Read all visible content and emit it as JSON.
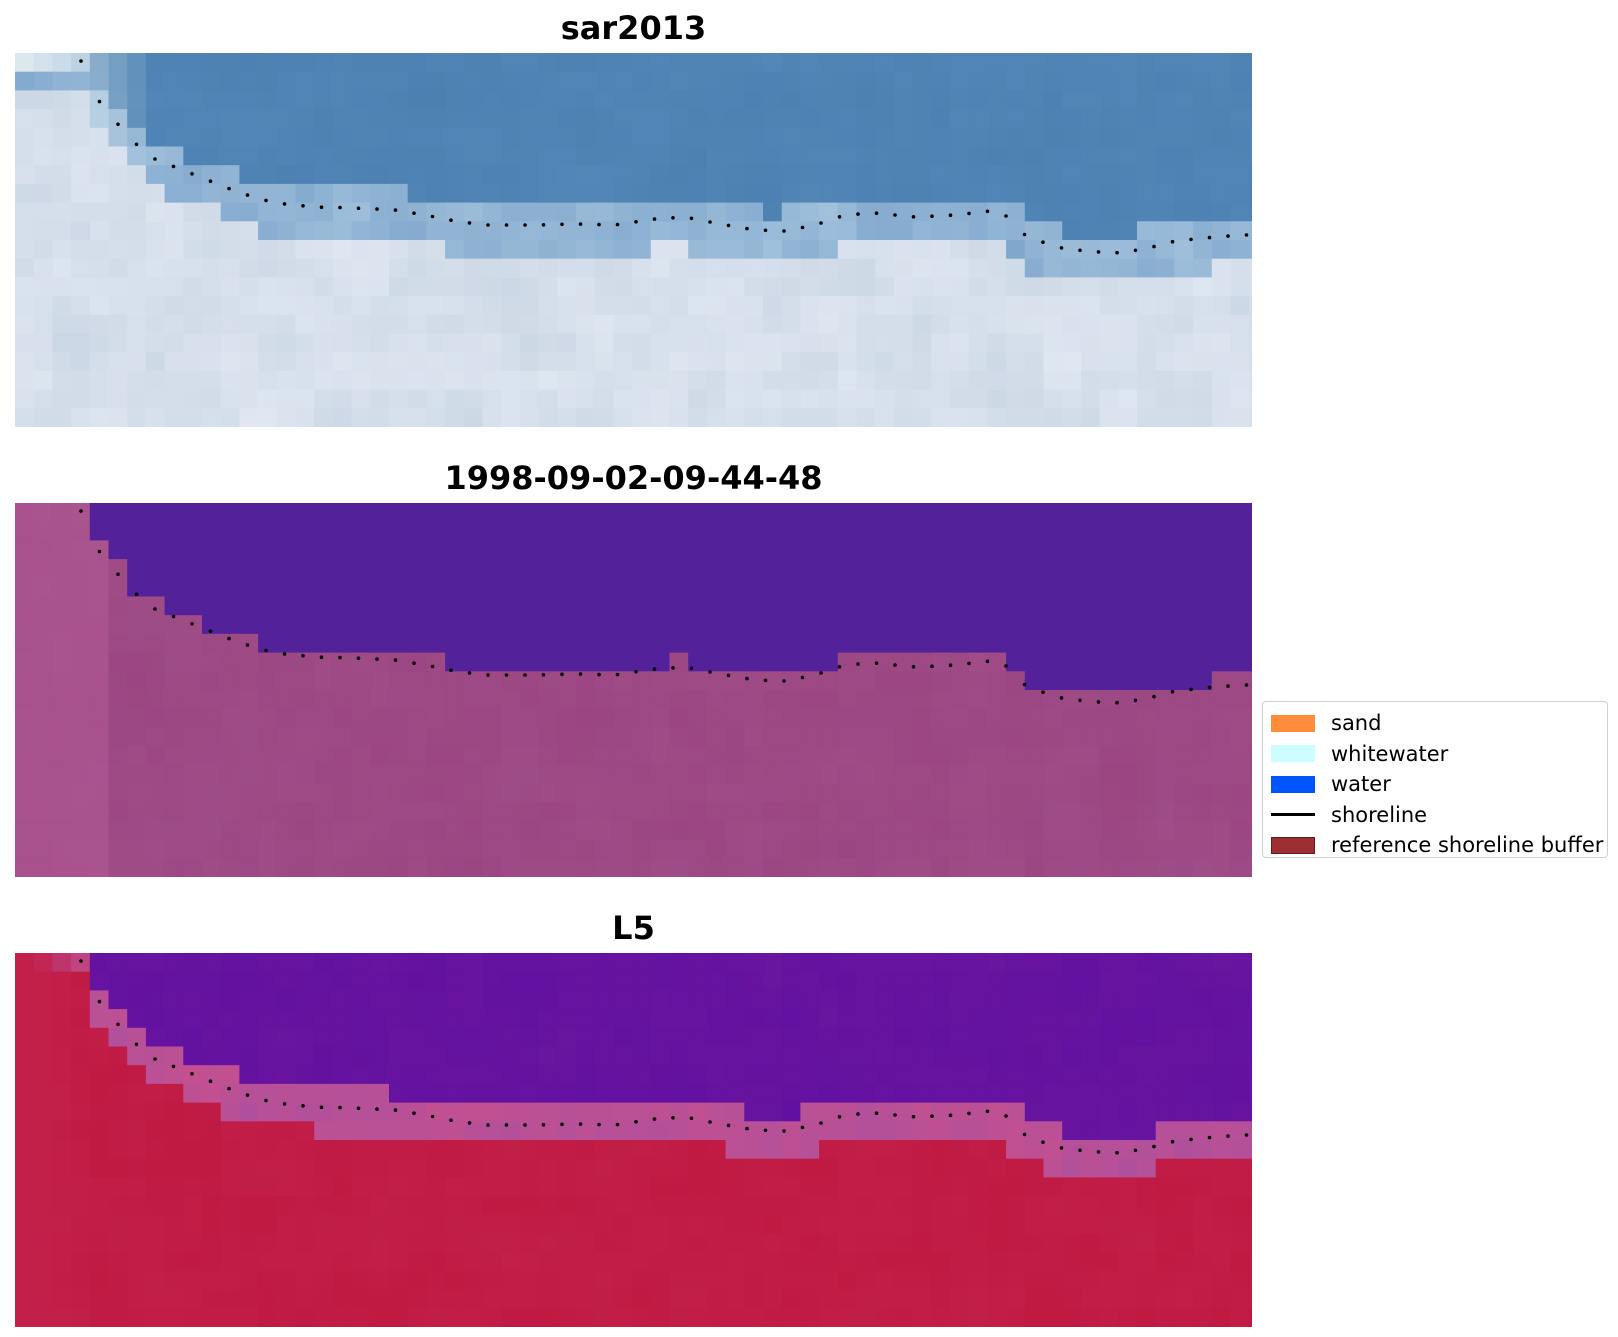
{
  "panels": [
    {
      "title": "sar2013",
      "style": "rgb"
    },
    {
      "title": "1998-09-02-09-44-48",
      "style": "classified"
    },
    {
      "title": "L5",
      "style": "index"
    }
  ],
  "legend": {
    "items": [
      {
        "label": "sand",
        "color": "#ff8c3a",
        "type": "patch"
      },
      {
        "label": "whitewater",
        "color": "#ccfdff",
        "type": "patch"
      },
      {
        "label": "water",
        "color": "#0055ff",
        "type": "patch"
      },
      {
        "label": "shoreline",
        "color": "#000000",
        "type": "line"
      },
      {
        "label": "reference shoreline buffer",
        "color": "#9c2f33",
        "type": "patch"
      }
    ]
  },
  "colors": {
    "rgb_water": "#4a7fb0",
    "rgb_land": "#c8d4e2",
    "classified_water": "#53229a",
    "classified_land": "#a04f8a",
    "index_water": "#6a16a0",
    "index_land": "#c2204a",
    "shoreline_points": "#000000"
  }
}
